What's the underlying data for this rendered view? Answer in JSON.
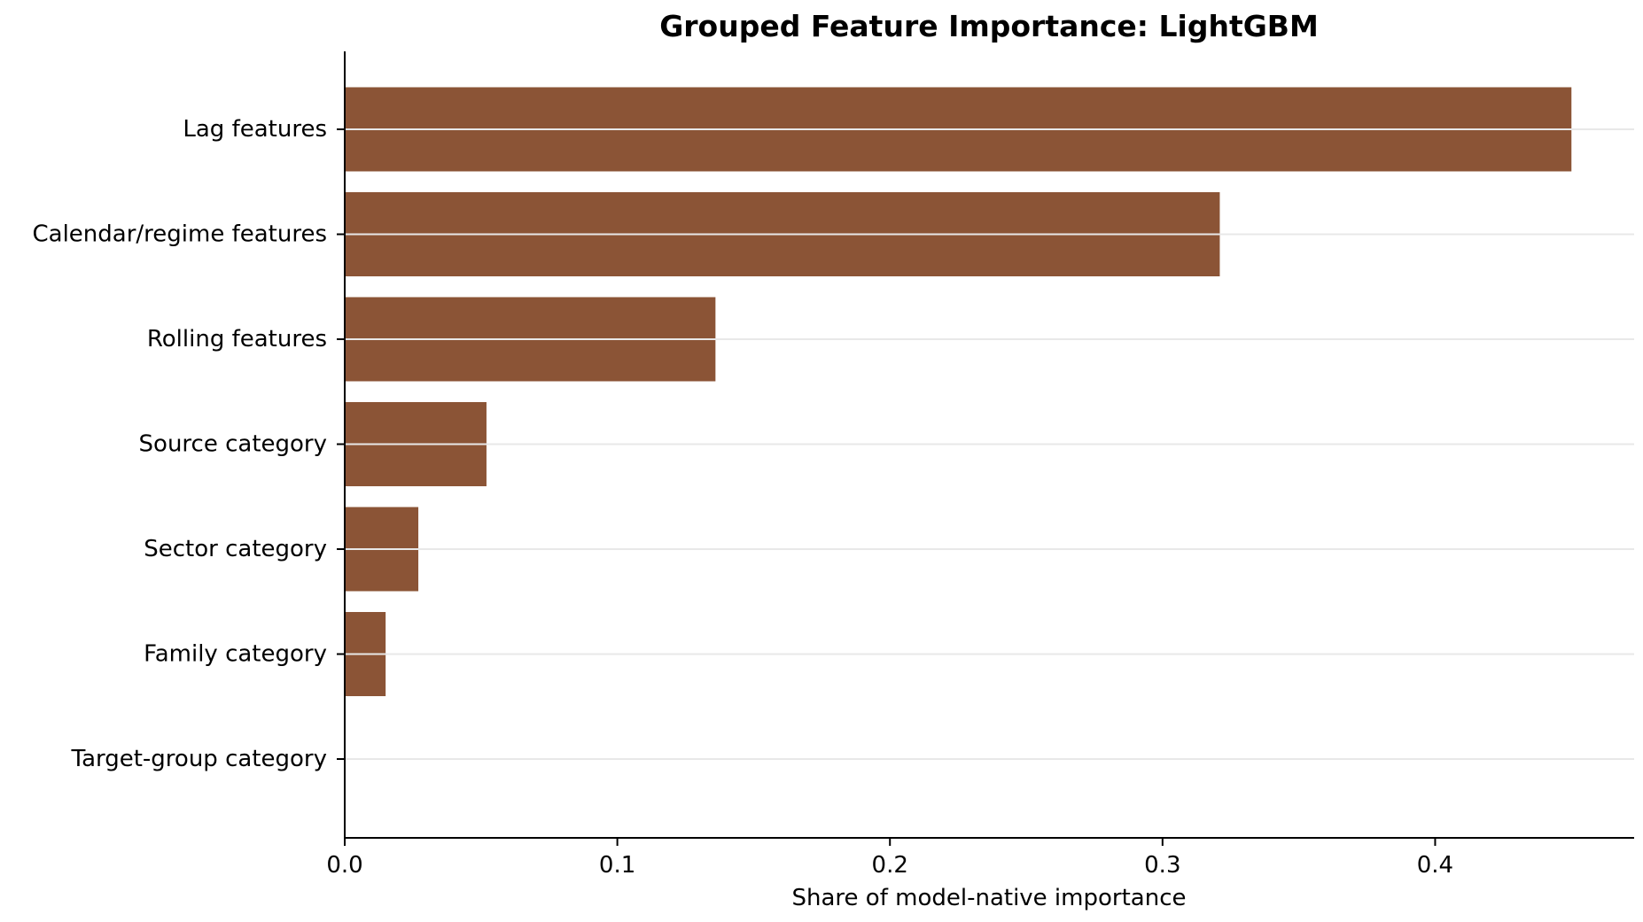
{
  "chart_data": {
    "type": "bar",
    "orientation": "horizontal",
    "title": "Grouped Feature Importance: LightGBM",
    "xlabel": "Share of model-native importance",
    "ylabel": "",
    "categories": [
      "Lag features",
      "Calendar/regime features",
      "Rolling features",
      "Source category",
      "Sector category",
      "Family category",
      "Target-group category"
    ],
    "values": [
      0.45,
      0.321,
      0.136,
      0.052,
      0.027,
      0.015,
      0.0
    ],
    "xlim": [
      0.0,
      0.473
    ],
    "xticks": [
      0.0,
      0.1,
      0.2,
      0.3,
      0.4
    ],
    "xtick_labels": [
      "0.0",
      "0.1",
      "0.2",
      "0.3",
      "0.4"
    ],
    "grid": "horizontal lines at categories",
    "legend": "none",
    "bar_color": "#8b5436",
    "grid_color": "#e8e8e8"
  }
}
